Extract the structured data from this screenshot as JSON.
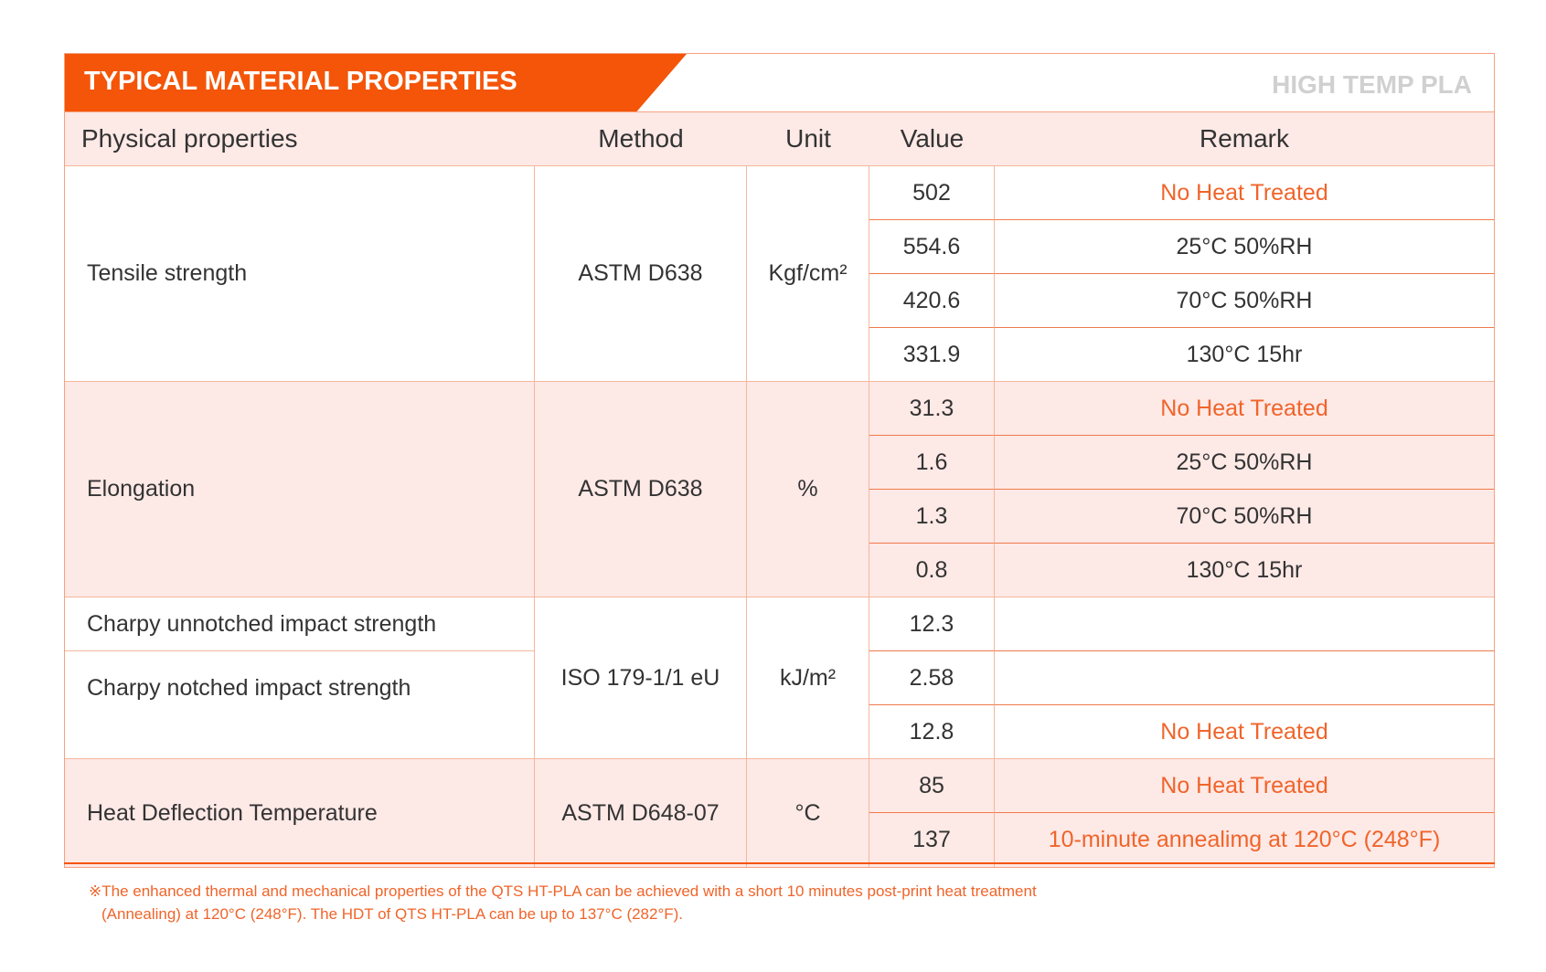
{
  "title": "TYPICAL MATERIAL PROPERTIES",
  "subtitle": "HIGH TEMP PLA",
  "headers": [
    "Physical properties",
    "Method",
    "Unit",
    "Value",
    "Remark"
  ],
  "groups": [
    {
      "property": "Tensile strength",
      "method": "ASTM D638",
      "unit": "Kgf/cm²",
      "rows": [
        {
          "value": "502",
          "remark": "No Heat Treated"
        },
        {
          "value": "554.6",
          "remark": "25°C  50%RH"
        },
        {
          "value": "420.6",
          "remark": "70°C  50%RH"
        },
        {
          "value": "331.9",
          "remark": "130°C  15hr"
        }
      ]
    },
    {
      "property": "Elongation",
      "method": "ASTM D638",
      "unit": "%",
      "rows": [
        {
          "value": "31.3",
          "remark": "No Heat Treated"
        },
        {
          "value": "1.6",
          "remark": "25°C  50%RH"
        },
        {
          "value": "1.3",
          "remark": "70°C  50%RH"
        },
        {
          "value": "0.8",
          "remark": "130°C  15hr"
        }
      ]
    },
    {
      "property": "Charpy unnotched impact strength",
      "property2": "Charpy notched impact strength",
      "method": "ISO 179-1/1 eU",
      "unit": "kJ/m²",
      "rows": [
        {
          "value": "12.3",
          "remark": ""
        },
        {
          "value": "2.58",
          "remark": ""
        },
        {
          "value": "12.8",
          "remark": "No Heat Treated"
        }
      ]
    },
    {
      "property": "Heat Deflection Temperature",
      "method": "ASTM D648-07",
      "unit": "°C",
      "rows": [
        {
          "value": "85",
          "remark": "No Heat Treated"
        },
        {
          "value": "137",
          "remark": "10-minute annealimg at 120°C (248°F)"
        }
      ]
    }
  ],
  "footnote": [
    "※The enhanced thermal and mechanical properties of the QTS HT-PLA can be achieved with a short 10 minutes post-print heat treatment",
    "(Annealing) at 120°C (248°F). The HDT of QTS HT-PLA can be up to 137°C (282°F)."
  ]
}
